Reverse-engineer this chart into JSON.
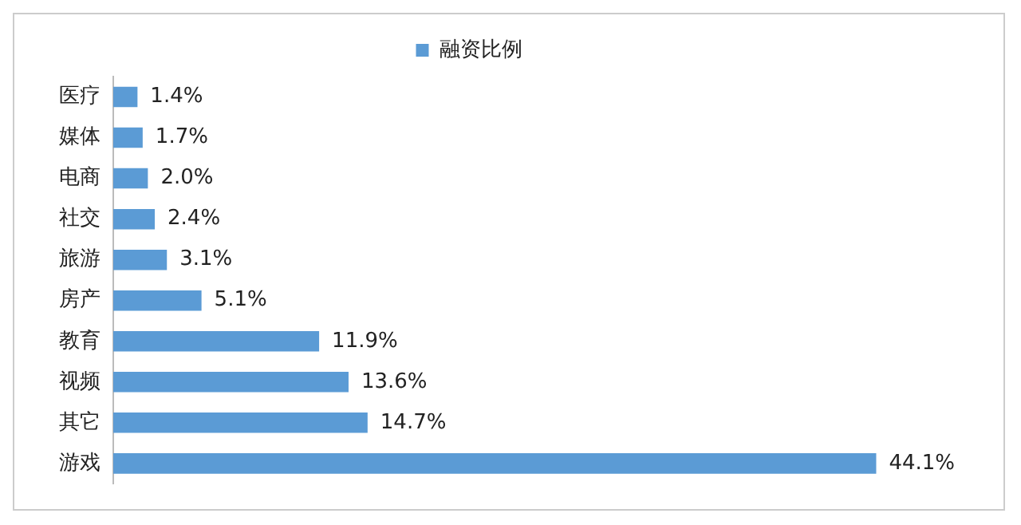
{
  "chart_data": {
    "type": "bar",
    "orientation": "horizontal",
    "categories": [
      "医疗",
      "媒体",
      "电商",
      "社交",
      "旅游",
      "房产",
      "教育",
      "视频",
      "其它",
      "游戏"
    ],
    "series": [
      {
        "name": "融资比例",
        "color": "#5b9bd5",
        "values": [
          1.4,
          1.7,
          2.0,
          2.4,
          3.1,
          5.1,
          11.9,
          13.6,
          14.7,
          44.1
        ],
        "value_labels": [
          "1.4%",
          "1.7%",
          "2.0%",
          "2.4%",
          "3.1%",
          "5.1%",
          "11.9%",
          "13.6%",
          "14.7%",
          "44.1%"
        ]
      }
    ],
    "legend": "top",
    "grid": false,
    "tick_labels": "y"
  }
}
